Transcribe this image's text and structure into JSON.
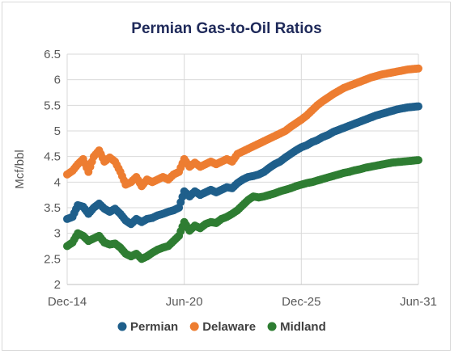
{
  "chart_data": {
    "type": "scatter",
    "title": "Permian Gas-to-Oil Ratios",
    "ylabel": "Mcf/bbl",
    "xlabel": "",
    "ylim": [
      2,
      6.5
    ],
    "yticks": [
      "2",
      "2.5",
      "3",
      "3.5",
      "4",
      "4.5",
      "5",
      "5.5",
      "6",
      "6.5"
    ],
    "xlim": [
      "2014-12",
      "2031-06"
    ],
    "xticks": [
      {
        "date": "2014-12",
        "label": "Dec-14"
      },
      {
        "date": "2020-06",
        "label": "Jun-20"
      },
      {
        "date": "2025-12",
        "label": "Dec-25"
      },
      {
        "date": "2031-06",
        "label": "Jun-31"
      }
    ],
    "grid": true,
    "legend_position": "bottom",
    "series": [
      {
        "name": "Permian",
        "color": "#1f5f8b",
        "points": [
          [
            "2014-12",
            3.28
          ],
          [
            "2015-03",
            3.32
          ],
          [
            "2015-06",
            3.55
          ],
          [
            "2015-09",
            3.52
          ],
          [
            "2015-12",
            3.38
          ],
          [
            "2016-03",
            3.5
          ],
          [
            "2016-06",
            3.58
          ],
          [
            "2016-09",
            3.48
          ],
          [
            "2016-12",
            3.42
          ],
          [
            "2017-03",
            3.48
          ],
          [
            "2017-06",
            3.38
          ],
          [
            "2017-09",
            3.25
          ],
          [
            "2017-12",
            3.18
          ],
          [
            "2018-03",
            3.28
          ],
          [
            "2018-06",
            3.22
          ],
          [
            "2018-09",
            3.28
          ],
          [
            "2018-12",
            3.3
          ],
          [
            "2019-03",
            3.35
          ],
          [
            "2019-06",
            3.38
          ],
          [
            "2019-09",
            3.42
          ],
          [
            "2019-12",
            3.45
          ],
          [
            "2020-03",
            3.5
          ],
          [
            "2020-06",
            3.82
          ],
          [
            "2020-09",
            3.72
          ],
          [
            "2020-12",
            3.82
          ],
          [
            "2021-03",
            3.75
          ],
          [
            "2021-06",
            3.8
          ],
          [
            "2021-09",
            3.85
          ],
          [
            "2021-12",
            3.8
          ],
          [
            "2022-03",
            3.85
          ],
          [
            "2022-06",
            3.9
          ],
          [
            "2022-09",
            3.88
          ],
          [
            "2022-12",
            3.98
          ],
          [
            "2023-03",
            4.05
          ],
          [
            "2023-06",
            4.1
          ],
          [
            "2023-09",
            4.12
          ],
          [
            "2023-12",
            4.15
          ],
          [
            "2024-03",
            4.2
          ],
          [
            "2024-06",
            4.28
          ],
          [
            "2024-09",
            4.35
          ],
          [
            "2024-12",
            4.4
          ],
          [
            "2025-03",
            4.48
          ],
          [
            "2025-06",
            4.55
          ],
          [
            "2025-09",
            4.62
          ],
          [
            "2025-12",
            4.68
          ],
          [
            "2026-03",
            4.72
          ],
          [
            "2026-06",
            4.78
          ],
          [
            "2026-09",
            4.82
          ],
          [
            "2026-12",
            4.88
          ],
          [
            "2027-03",
            4.92
          ],
          [
            "2027-06",
            4.98
          ],
          [
            "2027-09",
            5.02
          ],
          [
            "2027-12",
            5.06
          ],
          [
            "2028-03",
            5.1
          ],
          [
            "2028-06",
            5.14
          ],
          [
            "2028-09",
            5.18
          ],
          [
            "2028-12",
            5.22
          ],
          [
            "2029-03",
            5.26
          ],
          [
            "2029-06",
            5.3
          ],
          [
            "2029-09",
            5.33
          ],
          [
            "2029-12",
            5.36
          ],
          [
            "2030-03",
            5.39
          ],
          [
            "2030-06",
            5.42
          ],
          [
            "2030-09",
            5.44
          ],
          [
            "2030-12",
            5.46
          ],
          [
            "2031-03",
            5.47
          ],
          [
            "2031-06",
            5.48
          ]
        ]
      },
      {
        "name": "Delaware",
        "color": "#ed7d31",
        "points": [
          [
            "2014-12",
            4.15
          ],
          [
            "2015-03",
            4.22
          ],
          [
            "2015-06",
            4.35
          ],
          [
            "2015-09",
            4.45
          ],
          [
            "2015-12",
            4.2
          ],
          [
            "2016-03",
            4.5
          ],
          [
            "2016-06",
            4.62
          ],
          [
            "2016-09",
            4.4
          ],
          [
            "2016-12",
            4.48
          ],
          [
            "2017-03",
            4.4
          ],
          [
            "2017-06",
            4.2
          ],
          [
            "2017-09",
            3.95
          ],
          [
            "2017-12",
            4.0
          ],
          [
            "2018-03",
            4.1
          ],
          [
            "2018-06",
            3.92
          ],
          [
            "2018-09",
            4.05
          ],
          [
            "2018-12",
            4.0
          ],
          [
            "2019-03",
            4.05
          ],
          [
            "2019-06",
            4.1
          ],
          [
            "2019-09",
            4.05
          ],
          [
            "2019-12",
            4.15
          ],
          [
            "2020-03",
            4.2
          ],
          [
            "2020-06",
            4.45
          ],
          [
            "2020-09",
            4.3
          ],
          [
            "2020-12",
            4.38
          ],
          [
            "2021-03",
            4.3
          ],
          [
            "2021-06",
            4.35
          ],
          [
            "2021-09",
            4.4
          ],
          [
            "2021-12",
            4.35
          ],
          [
            "2022-03",
            4.4
          ],
          [
            "2022-06",
            4.45
          ],
          [
            "2022-09",
            4.4
          ],
          [
            "2022-12",
            4.55
          ],
          [
            "2023-03",
            4.6
          ],
          [
            "2023-06",
            4.65
          ],
          [
            "2023-09",
            4.7
          ],
          [
            "2023-12",
            4.75
          ],
          [
            "2024-03",
            4.8
          ],
          [
            "2024-06",
            4.85
          ],
          [
            "2024-09",
            4.9
          ],
          [
            "2024-12",
            4.95
          ],
          [
            "2025-03",
            5.0
          ],
          [
            "2025-06",
            5.08
          ],
          [
            "2025-09",
            5.15
          ],
          [
            "2025-12",
            5.22
          ],
          [
            "2026-03",
            5.3
          ],
          [
            "2026-06",
            5.4
          ],
          [
            "2026-09",
            5.5
          ],
          [
            "2026-12",
            5.58
          ],
          [
            "2027-03",
            5.65
          ],
          [
            "2027-06",
            5.72
          ],
          [
            "2027-09",
            5.78
          ],
          [
            "2027-12",
            5.84
          ],
          [
            "2028-03",
            5.88
          ],
          [
            "2028-06",
            5.92
          ],
          [
            "2028-09",
            5.96
          ],
          [
            "2028-12",
            6.0
          ],
          [
            "2029-03",
            6.04
          ],
          [
            "2029-06",
            6.07
          ],
          [
            "2029-09",
            6.1
          ],
          [
            "2029-12",
            6.12
          ],
          [
            "2030-03",
            6.14
          ],
          [
            "2030-06",
            6.16
          ],
          [
            "2030-09",
            6.18
          ],
          [
            "2030-12",
            6.2
          ],
          [
            "2031-03",
            6.21
          ],
          [
            "2031-06",
            6.22
          ]
        ]
      },
      {
        "name": "Midland",
        "color": "#2e7d32",
        "points": [
          [
            "2014-12",
            2.75
          ],
          [
            "2015-03",
            2.82
          ],
          [
            "2015-06",
            3.0
          ],
          [
            "2015-09",
            2.95
          ],
          [
            "2015-12",
            2.85
          ],
          [
            "2016-03",
            2.9
          ],
          [
            "2016-06",
            2.95
          ],
          [
            "2016-09",
            2.82
          ],
          [
            "2016-12",
            2.78
          ],
          [
            "2017-03",
            2.8
          ],
          [
            "2017-06",
            2.72
          ],
          [
            "2017-09",
            2.6
          ],
          [
            "2017-12",
            2.55
          ],
          [
            "2018-03",
            2.6
          ],
          [
            "2018-06",
            2.5
          ],
          [
            "2018-09",
            2.55
          ],
          [
            "2018-12",
            2.62
          ],
          [
            "2019-03",
            2.68
          ],
          [
            "2019-06",
            2.72
          ],
          [
            "2019-09",
            2.75
          ],
          [
            "2019-12",
            2.85
          ],
          [
            "2020-03",
            2.95
          ],
          [
            "2020-06",
            3.22
          ],
          [
            "2020-09",
            3.05
          ],
          [
            "2020-12",
            3.15
          ],
          [
            "2021-03",
            3.1
          ],
          [
            "2021-06",
            3.18
          ],
          [
            "2021-09",
            3.22
          ],
          [
            "2021-12",
            3.2
          ],
          [
            "2022-03",
            3.28
          ],
          [
            "2022-06",
            3.32
          ],
          [
            "2022-09",
            3.38
          ],
          [
            "2022-12",
            3.45
          ],
          [
            "2023-03",
            3.55
          ],
          [
            "2023-06",
            3.65
          ],
          [
            "2023-09",
            3.72
          ],
          [
            "2023-12",
            3.7
          ],
          [
            "2024-03",
            3.72
          ],
          [
            "2024-06",
            3.75
          ],
          [
            "2024-09",
            3.78
          ],
          [
            "2024-12",
            3.82
          ],
          [
            "2025-03",
            3.85
          ],
          [
            "2025-06",
            3.88
          ],
          [
            "2025-09",
            3.92
          ],
          [
            "2025-12",
            3.95
          ],
          [
            "2026-03",
            3.98
          ],
          [
            "2026-06",
            4.0
          ],
          [
            "2026-09",
            4.03
          ],
          [
            "2026-12",
            4.06
          ],
          [
            "2027-03",
            4.09
          ],
          [
            "2027-06",
            4.12
          ],
          [
            "2027-09",
            4.15
          ],
          [
            "2027-12",
            4.18
          ],
          [
            "2028-03",
            4.2
          ],
          [
            "2028-06",
            4.23
          ],
          [
            "2028-09",
            4.25
          ],
          [
            "2028-12",
            4.28
          ],
          [
            "2029-03",
            4.3
          ],
          [
            "2029-06",
            4.32
          ],
          [
            "2029-09",
            4.34
          ],
          [
            "2029-12",
            4.36
          ],
          [
            "2030-03",
            4.38
          ],
          [
            "2030-06",
            4.39
          ],
          [
            "2030-09",
            4.4
          ],
          [
            "2030-12",
            4.41
          ],
          [
            "2031-03",
            4.42
          ],
          [
            "2031-06",
            4.43
          ]
        ]
      }
    ]
  }
}
